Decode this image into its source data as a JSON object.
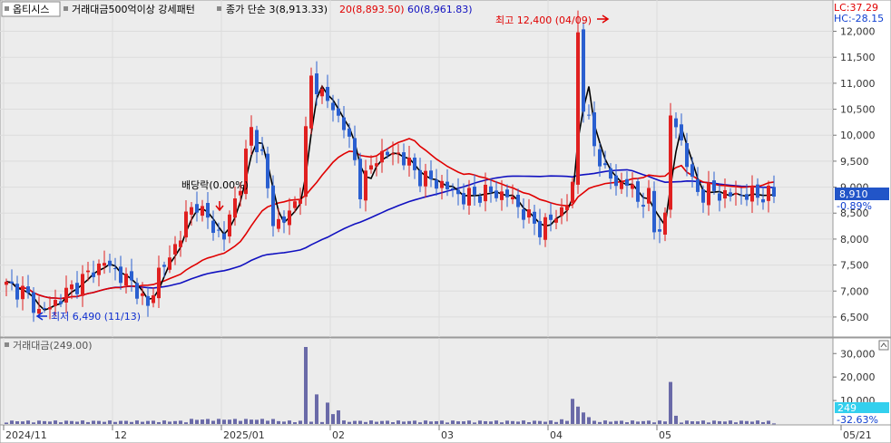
{
  "header": {
    "stock_name": "옵티시스",
    "condition": "거래대금500억이상 강세패턴",
    "close_label": "종가 단순 3(8,913.33)",
    "ma20_label": "20(8,893.50)",
    "ma60_label": "60(8,961.83)",
    "lc_label": "LC:37.29",
    "hc_label": "HC:-28.15"
  },
  "annotations": {
    "high_label": "최고 12,400 (04/09)",
    "low_label": "최저 6,490 (11/13)",
    "dividend_label": "배당락(0.00%)"
  },
  "price_badge": {
    "value": "8,910",
    "change": "-0.89%"
  },
  "volume_badge": {
    "value": "249",
    "change": "-32.63%"
  },
  "volume_header": {
    "label": "거래대금(249.00)"
  },
  "colors": {
    "up": "#e02020",
    "down": "#2a5fd0",
    "ma3": "#000000",
    "ma20": "#e00000",
    "ma60": "#1010c0",
    "volume": "#6a6aa8",
    "badge": "#2255c8",
    "vol_badge": "#33d0ee"
  },
  "chart_data": [
    {
      "type": "candlestick",
      "title": "옵티시스",
      "y_ticks": [
        6500,
        7000,
        7500,
        8000,
        8500,
        9000,
        9500,
        10000,
        10500,
        11000,
        11500,
        12000
      ],
      "y_tick_labels": [
        "6,500",
        "7,000",
        "7,500",
        "8,000",
        "8,500",
        "9,000",
        "9,500",
        "10,000",
        "10,500",
        "11,000",
        "11,500",
        "12,000"
      ],
      "ylim": [
        6150,
        12550
      ],
      "x_ticks": [
        {
          "label": "2024/11",
          "index": 0
        },
        {
          "label": "12",
          "index": 20
        },
        {
          "label": "2025/01",
          "index": 40
        },
        {
          "label": "02",
          "index": 60
        },
        {
          "label": "03",
          "index": 80
        },
        {
          "label": "04",
          "index": 100
        },
        {
          "label": "05",
          "index": 120
        },
        {
          "label": "05/21",
          "index": 141
        }
      ],
      "high": {
        "value": 12400,
        "date": "04/09"
      },
      "low": {
        "value": 6490,
        "date": "11/13"
      },
      "last_close": 8910,
      "series_keys": [
        {
          "key": "open",
          "name": ""
        },
        {
          "key": "high",
          "name": ""
        },
        {
          "key": "low",
          "name": ""
        },
        {
          "key": "close",
          "name": ""
        }
      ],
      "ma_lines": [
        {
          "name": "종가 단순 3",
          "last": 8913.33
        },
        {
          "name": "20",
          "last": 8893.5
        },
        {
          "name": "60",
          "last": 8961.83
        }
      ]
    },
    {
      "type": "bar",
      "title": "거래대금",
      "last": 249,
      "y_ticks": [
        10000,
        20000,
        30000
      ],
      "y_tick_labels": [
        "10,000",
        "20,000",
        "30,000"
      ],
      "ylim": [
        0,
        35500
      ]
    }
  ]
}
